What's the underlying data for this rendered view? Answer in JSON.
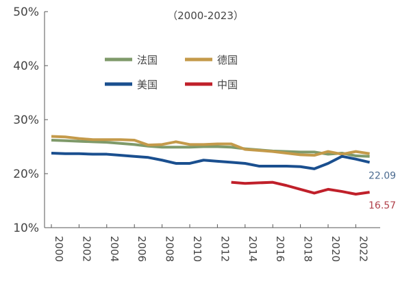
{
  "chart_data": {
    "type": "line",
    "title": "（2000-2023）",
    "xlabel": "",
    "ylabel": "",
    "ylim": [
      10,
      50
    ],
    "xlim": [
      2000,
      2023
    ],
    "y_ticks": [
      "10%",
      "20%",
      "30%",
      "40%",
      "50%"
    ],
    "y_tick_values": [
      10,
      20,
      30,
      40,
      50
    ],
    "x_ticks": [
      "2000",
      "2002",
      "2004",
      "2006",
      "2008",
      "2010",
      "2012",
      "2014",
      "2016",
      "2018",
      "2020",
      "2022"
    ],
    "grid": false,
    "legend_position": "top-left",
    "series": [
      {
        "name": "法国",
        "color": "#7f9a6a",
        "x": [
          2000,
          2001,
          2002,
          2003,
          2004,
          2005,
          2006,
          2007,
          2008,
          2009,
          2010,
          2011,
          2012,
          2013,
          2014,
          2015,
          2016,
          2017,
          2018,
          2019,
          2020,
          2021,
          2022,
          2023
        ],
        "values": [
          26.2,
          26.1,
          26.0,
          25.9,
          25.8,
          25.6,
          25.4,
          25.1,
          24.9,
          24.9,
          24.9,
          25.0,
          25.0,
          24.9,
          24.6,
          24.4,
          24.2,
          24.1,
          24.0,
          24.0,
          23.6,
          23.8,
          23.3,
          23.2
        ]
      },
      {
        "name": "德国",
        "color": "#c49a4a",
        "x": [
          2000,
          2001,
          2002,
          2003,
          2004,
          2005,
          2006,
          2007,
          2008,
          2009,
          2010,
          2011,
          2012,
          2013,
          2014,
          2015,
          2016,
          2017,
          2018,
          2019,
          2020,
          2021,
          2022,
          2023
        ],
        "values": [
          26.9,
          26.8,
          26.5,
          26.3,
          26.3,
          26.3,
          26.2,
          25.3,
          25.4,
          25.9,
          25.4,
          25.4,
          25.5,
          25.5,
          24.5,
          24.3,
          24.1,
          23.8,
          23.5,
          23.4,
          24.1,
          23.6,
          24.1,
          23.7
        ]
      },
      {
        "name": "美国",
        "color": "#1a4f8f",
        "x": [
          2000,
          2001,
          2002,
          2003,
          2004,
          2005,
          2006,
          2007,
          2008,
          2009,
          2010,
          2011,
          2012,
          2013,
          2014,
          2015,
          2016,
          2017,
          2018,
          2019,
          2020,
          2021,
          2022,
          2023
        ],
        "values": [
          23.8,
          23.7,
          23.7,
          23.6,
          23.6,
          23.4,
          23.2,
          23.0,
          22.5,
          21.9,
          21.9,
          22.5,
          22.3,
          22.1,
          21.9,
          21.4,
          21.4,
          21.4,
          21.3,
          20.9,
          21.9,
          23.2,
          22.7,
          22.09
        ],
        "end_label": "22.09"
      },
      {
        "name": "中国",
        "color": "#c0202a",
        "x": [
          2013,
          2014,
          2015,
          2016,
          2017,
          2018,
          2019,
          2020,
          2021,
          2022,
          2023
        ],
        "values": [
          18.4,
          18.2,
          18.3,
          18.4,
          17.8,
          17.1,
          16.4,
          17.1,
          16.7,
          16.2,
          16.57
        ],
        "end_label": "16.57"
      }
    ]
  }
}
